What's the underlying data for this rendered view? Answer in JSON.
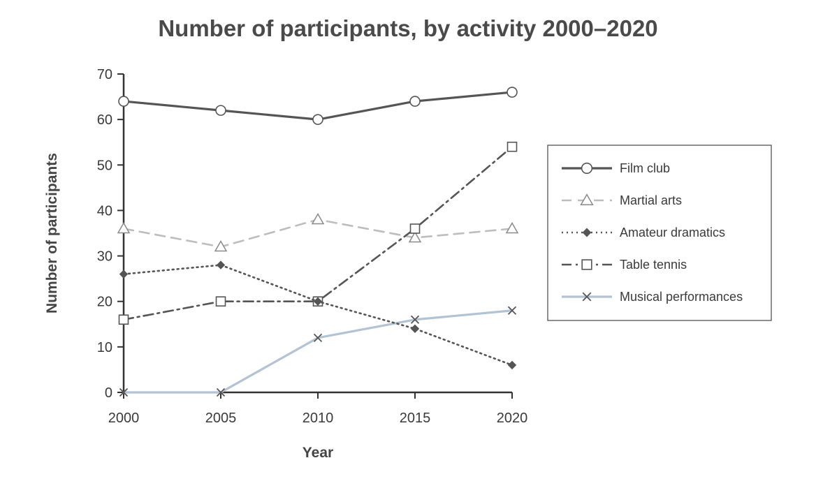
{
  "chart_data": {
    "type": "line",
    "title": "Number of participants, by activity 2000–2020",
    "xlabel": "Year",
    "ylabel": "Number of participants",
    "x": [
      "2000",
      "2005",
      "2010",
      "2015",
      "2020"
    ],
    "ylim": [
      0,
      70
    ],
    "yticks": [
      "0",
      "10",
      "20",
      "30",
      "40",
      "50",
      "60",
      "70"
    ],
    "grid": false,
    "legend_position": "right",
    "series": [
      {
        "name": "Film club",
        "values": [
          64,
          62,
          60,
          64,
          66
        ],
        "color": "#555555",
        "line": "solid",
        "marker": "circle-open"
      },
      {
        "name": "Martial arts",
        "values": [
          36,
          32,
          38,
          34,
          36
        ],
        "color": "#bdbdbd",
        "line": "dashed",
        "marker": "triangle-open"
      },
      {
        "name": "Amateur dramatics",
        "values": [
          26,
          28,
          20,
          14,
          6
        ],
        "color": "#555555",
        "line": "dotted",
        "marker": "diamond-filled"
      },
      {
        "name": "Table tennis",
        "values": [
          16,
          20,
          20,
          36,
          54
        ],
        "color": "#555555",
        "line": "dashdot",
        "marker": "square-open"
      },
      {
        "name": "Musical performances",
        "values": [
          0,
          0,
          12,
          16,
          18
        ],
        "color": "#b3c3d3",
        "line": "solid",
        "marker": "x"
      }
    ]
  }
}
